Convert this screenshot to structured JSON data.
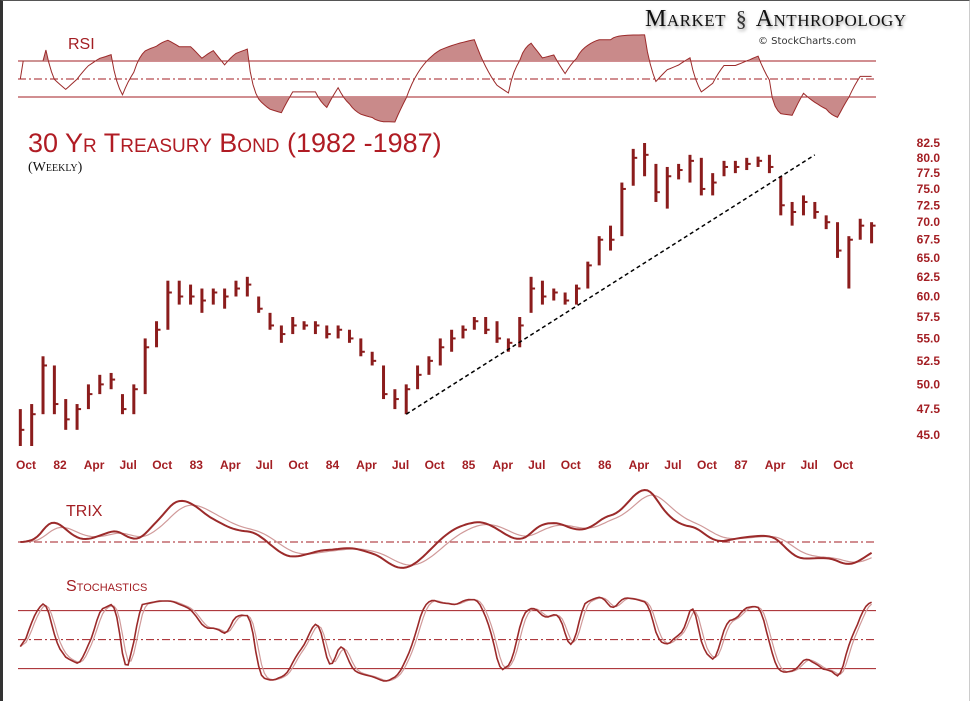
{
  "header": {
    "brand_left": "Market",
    "brand_right": "Anthropology",
    "brand_icon": "dna-helix-icon",
    "credit": "© StockCharts.com"
  },
  "panels": {
    "rsi_label": "RSI",
    "trix_label": "TRIX",
    "stoch_label": "Stochastics"
  },
  "colors": {
    "price": "#8b1c1c",
    "accent": "#a31e23",
    "indicator": "#9b2a2a",
    "trendline": "#000000"
  },
  "chart_data": {
    "type": "bar",
    "title": "30 Yr Treasury Bond (1982 -1987)",
    "subtitle": "(Weekly)",
    "scale": "log",
    "ylim": [
      43.5,
      84
    ],
    "grid": false,
    "y_ticks": [
      "82.5",
      "80.0",
      "77.5",
      "75.0",
      "72.5",
      "70.0",
      "67.5",
      "65.0",
      "62.5",
      "60.0",
      "57.5",
      "55.0",
      "52.5",
      "50.0",
      "47.5",
      "45.0"
    ],
    "x_ticks": [
      "Oct",
      "82",
      "Apr",
      "Jul",
      "Oct",
      "83",
      "Apr",
      "Jul",
      "Oct",
      "84",
      "Apr",
      "Jul",
      "Oct",
      "85",
      "Apr",
      "Jul",
      "Oct",
      "86",
      "Apr",
      "Jul",
      "Oct",
      "87",
      "Apr",
      "Jul",
      "Oct"
    ],
    "x_start": "1981-09",
    "high": [
      47.5,
      48,
      53,
      52,
      48.5,
      48,
      50,
      51,
      51.2,
      49,
      50,
      55,
      57,
      62,
      62,
      61.5,
      61,
      61,
      61,
      62,
      62.5,
      60,
      58,
      56.5,
      57.5,
      57,
      57,
      56.5,
      56.5,
      56,
      55,
      53.5,
      52,
      49.5,
      50,
      52,
      53,
      55,
      56,
      56.5,
      57.5,
      57.5,
      57,
      55,
      57.5,
      62.5,
      62,
      61,
      60.5,
      61.5,
      64.5,
      68,
      69.5,
      76,
      81.5,
      82.5,
      79,
      78.5,
      79,
      80.5,
      80,
      77.5,
      79.5,
      79.5,
      80,
      80.2,
      80.5,
      77,
      73,
      74,
      73,
      71,
      70,
      68,
      70.5,
      70
    ],
    "low": [
      44,
      44,
      47,
      47,
      45.5,
      45.5,
      47.5,
      49,
      49.5,
      47,
      47,
      49,
      54,
      56,
      59,
      59,
      58,
      59,
      58.5,
      60,
      60,
      58,
      56,
      54.5,
      55.5,
      56,
      55.5,
      55,
      55,
      54.5,
      53,
      52,
      48.5,
      47.5,
      47,
      49.5,
      51,
      52,
      53.5,
      55,
      56,
      55.5,
      54.5,
      53.5,
      54,
      58,
      59,
      59.5,
      59,
      59,
      61,
      64,
      66,
      68,
      75.5,
      77,
      73,
      72,
      76.5,
      76,
      74,
      74,
      77,
      77.5,
      78,
      78.5,
      77.5,
      71,
      69.5,
      71,
      70.5,
      69,
      65,
      61,
      67.5,
      67
    ],
    "close": [
      45.5,
      47,
      52,
      48,
      46.5,
      47.5,
      49,
      50,
      50.5,
      47.5,
      49.5,
      54,
      56,
      60.5,
      60,
      60,
      59.5,
      60.5,
      60,
      61,
      61.5,
      58.5,
      56.5,
      55.5,
      56.5,
      56.5,
      56.5,
      55.5,
      56,
      55,
      53.5,
      52.5,
      49,
      48.5,
      49.5,
      51,
      52.5,
      54,
      55,
      56,
      57,
      56,
      55,
      54.5,
      56.5,
      61,
      60,
      60.5,
      59.5,
      61,
      64,
      67.5,
      67.5,
      75,
      80,
      80.5,
      74.5,
      77,
      78,
      79.5,
      75,
      76,
      78.5,
      78.5,
      79,
      79.5,
      78.5,
      72.5,
      71.5,
      73,
      71.5,
      70,
      66,
      67.5,
      69.5,
      69.5
    ],
    "trendline": {
      "from": [
        "1984-07",
        47.0
      ],
      "to": [
        "1987-07",
        80.5
      ],
      "style": "dashed"
    },
    "indicators": {
      "rsi_levels": [
        70,
        50,
        30
      ],
      "stoch_levels": [
        80,
        50,
        20
      ]
    }
  }
}
